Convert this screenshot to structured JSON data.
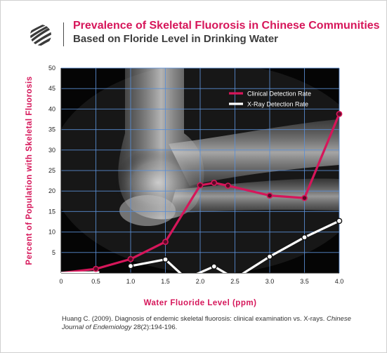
{
  "header": {
    "title": "Prevalence of Skeletal Fluorosis in Chinese Communities",
    "subtitle": "Based on Floride Level in Drinking Water"
  },
  "icons": {
    "logo": "striped-globe-logo"
  },
  "colors": {
    "clinical": "#d6165a",
    "xray": "#ffffff",
    "axis_label": "#d6165a",
    "grid": "#5b8fd6"
  },
  "chart_data": {
    "type": "line",
    "title": "Prevalence of Skeletal Fluorosis in Chinese Communities",
    "subtitle": "Based on Floride Level in Drinking Water",
    "xlabel": "Water Fluoride Level (ppm)",
    "ylabel": "Percent of Population with Skeletal Fluorosis",
    "xlim": [
      0,
      4.0
    ],
    "ylim": [
      0,
      50
    ],
    "x_ticks": [
      "0",
      "0.5",
      "1.0",
      "1.5",
      "2.0",
      "2.5",
      "3.0",
      "3.5",
      "4.0"
    ],
    "y_ticks": [
      "5",
      "10",
      "15",
      "20",
      "25",
      "30",
      "35",
      "40",
      "45",
      "50"
    ],
    "grid": true,
    "legend_position": "top-right",
    "background": "elbow x-ray photograph",
    "series": [
      {
        "name": "Clinical Detection Rate",
        "color": "#d6165a",
        "x": [
          0,
          0.5,
          1.0,
          1.5,
          2.0,
          2.2,
          2.4,
          3.0,
          3.5,
          4.0
        ],
        "y": [
          0,
          1.0,
          3.4,
          7.6,
          21.4,
          22.0,
          21.3,
          18.9,
          18.3,
          38.8
        ]
      },
      {
        "name": "X-Ray Detection Rate",
        "color": "#ffffff",
        "x": [
          1.0,
          1.5,
          2.2,
          3.0,
          3.5,
          4.0
        ],
        "y": [
          1.7,
          3.3,
          1.6,
          4.0,
          8.7,
          12.7
        ],
        "offscale_segments": true
      }
    ]
  },
  "citation": {
    "text": "Huang C. (2009). Diagnosis of endemic skeletal fluorosis: clinical examination vs. X-rays.",
    "journal": "Chinese Journal of Endemiology",
    "details": "28(2):194-196."
  }
}
